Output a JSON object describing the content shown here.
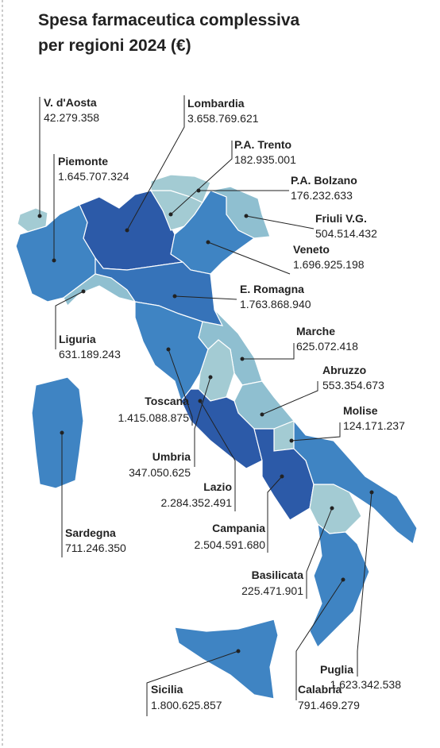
{
  "header": {
    "title": [
      "Spesa farmaceutica complessiva",
      "per regioni 2024 (€)"
    ]
  },
  "regions": [
    {
      "name": "V. d'Aosta",
      "value": "42.279.358",
      "color": "#a3cbd3"
    },
    {
      "name": "Lombardia",
      "value": "3.658.769.621",
      "color": "#2c5aa8"
    },
    {
      "name": "Piemonte",
      "value": "1.645.707.324",
      "color": "#3f84c3"
    },
    {
      "name": "P.A. Trento",
      "value": "182.935.001",
      "color": "#a3cbd3"
    },
    {
      "name": "P.A. Bolzano",
      "value": "176.232.633",
      "color": "#a3cbd3"
    },
    {
      "name": "Friuli V.G.",
      "value": "504.514.432",
      "color": "#8fbfd0"
    },
    {
      "name": "Veneto",
      "value": "1.696.925.198",
      "color": "#3f84c3"
    },
    {
      "name": "E. Romagna",
      "value": "1.763.868.940",
      "color": "#3673b9"
    },
    {
      "name": "Liguria",
      "value": "631.189.243",
      "color": "#8fbfd0"
    },
    {
      "name": "Marche",
      "value": "625.072.418",
      "color": "#8fbfd0"
    },
    {
      "name": "Toscana",
      "value": "1.415.088.875",
      "color": "#3f84c3"
    },
    {
      "name": "Abruzzo",
      "value": "553.354.673",
      "color": "#8fbfd0"
    },
    {
      "name": "Umbria",
      "value": "347.050.625",
      "color": "#a3cbd3"
    },
    {
      "name": "Molise",
      "value": "124.171.237",
      "color": "#a3cbd3"
    },
    {
      "name": "Lazio",
      "value": "2.284.352.491",
      "color": "#2c5aa8"
    },
    {
      "name": "Campania",
      "value": "2.504.591.680",
      "color": "#2c5aa8"
    },
    {
      "name": "Sardegna",
      "value": "711.246.350",
      "color": "#3f84c3"
    },
    {
      "name": "Basilicata",
      "value": "225.471.901",
      "color": "#a3cbd3"
    },
    {
      "name": "Puglia",
      "value": "1.623.342.538",
      "color": "#3f84c3"
    },
    {
      "name": "Sicilia",
      "value": "1.800.625.857",
      "color": "#3f84c3"
    },
    {
      "name": "Calabria",
      "value": "791.469.279",
      "color": "#3f84c3"
    }
  ]
}
